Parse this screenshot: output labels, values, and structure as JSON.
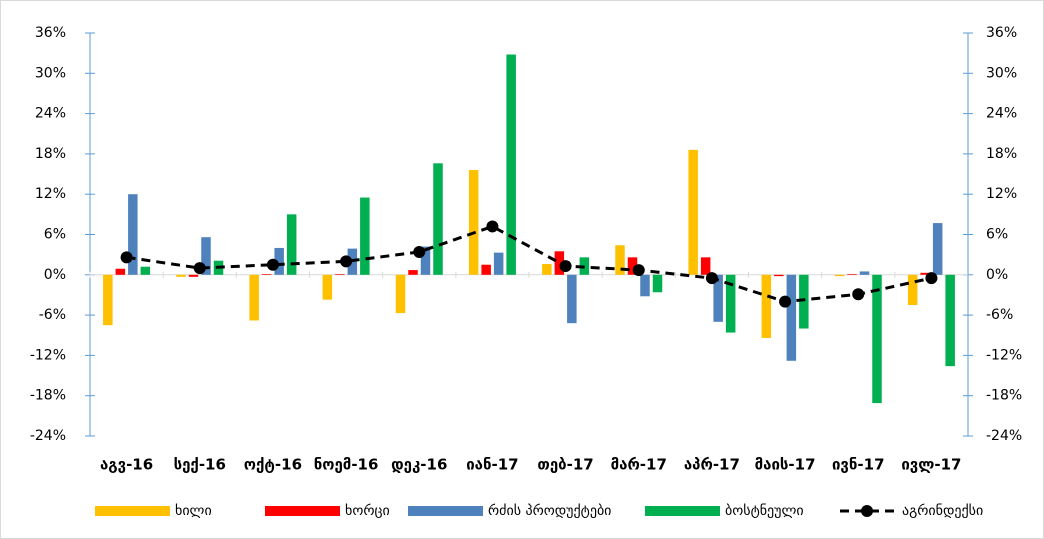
{
  "chart_data": {
    "type": "bar",
    "categories": [
      "აგვ-16",
      "სექ-16",
      "ოქტ-16",
      "ნოემ-16",
      "დეკ-16",
      "იან-17",
      "თებ-17",
      "მარ-17",
      "აპრ-17",
      "მაის-17",
      "ივნ-17",
      "ივლ-17"
    ],
    "series": [
      {
        "name": "ხილი",
        "color": "#FFC000",
        "values": [
          -7.5,
          -0.3,
          -6.8,
          -3.7,
          -5.7,
          15.6,
          1.6,
          4.4,
          18.6,
          -9.4,
          -0.2,
          -4.5
        ]
      },
      {
        "name": "ხორცი",
        "color": "#FF0000",
        "values": [
          0.9,
          -0.3,
          0.1,
          0.1,
          0.7,
          1.5,
          3.5,
          2.6,
          2.6,
          -0.2,
          0.1,
          0.3
        ]
      },
      {
        "name": "რძის პროდუქტები",
        "color": "#4F81BD",
        "values": [
          12.0,
          5.6,
          4.0,
          3.9,
          4.2,
          3.3,
          -7.2,
          -3.2,
          -7.0,
          -12.8,
          0.5,
          7.7
        ]
      },
      {
        "name": "ბოსტნეული",
        "color": "#00B050",
        "values": [
          1.2,
          2.1,
          9.0,
          11.5,
          16.6,
          32.8,
          2.6,
          -2.6,
          -8.6,
          -8.0,
          -19.1,
          -13.6
        ]
      },
      {
        "name": "აგრინდექსი",
        "color": "#000000",
        "type": "line",
        "values": [
          2.6,
          1.0,
          1.5,
          2.0,
          3.4,
          7.2,
          1.3,
          0.7,
          -0.5,
          -4.0,
          -2.9,
          -0.5
        ]
      }
    ],
    "ylim": [
      -24,
      36
    ],
    "yticks": [
      {
        "value": -24,
        "label": "-24%"
      },
      {
        "value": -18,
        "label": "-18%"
      },
      {
        "value": -12,
        "label": "-12%"
      },
      {
        "value": -6,
        "label": "-6%"
      },
      {
        "value": 0,
        "label": "0%"
      },
      {
        "value": 6,
        "label": "6%"
      },
      {
        "value": 12,
        "label": "12%"
      },
      {
        "value": 18,
        "label": "18%"
      },
      {
        "value": 24,
        "label": "24%"
      },
      {
        "value": 30,
        "label": "30%"
      },
      {
        "value": 36,
        "label": "36%"
      }
    ],
    "y2lim": [
      -24,
      36
    ],
    "y2ticks": [
      {
        "value": -24,
        "label": "-24%"
      },
      {
        "value": -18,
        "label": "-18%"
      },
      {
        "value": -12,
        "label": "-12%"
      },
      {
        "value": -6,
        "label": "-6%"
      },
      {
        "value": 0,
        "label": "0%"
      },
      {
        "value": 6,
        "label": "6%"
      },
      {
        "value": 12,
        "label": "12%"
      },
      {
        "value": 18,
        "label": "18%"
      },
      {
        "value": 24,
        "label": "24%"
      },
      {
        "value": 30,
        "label": "30%"
      },
      {
        "value": 36,
        "label": "36%"
      }
    ],
    "legend": "bottom"
  }
}
